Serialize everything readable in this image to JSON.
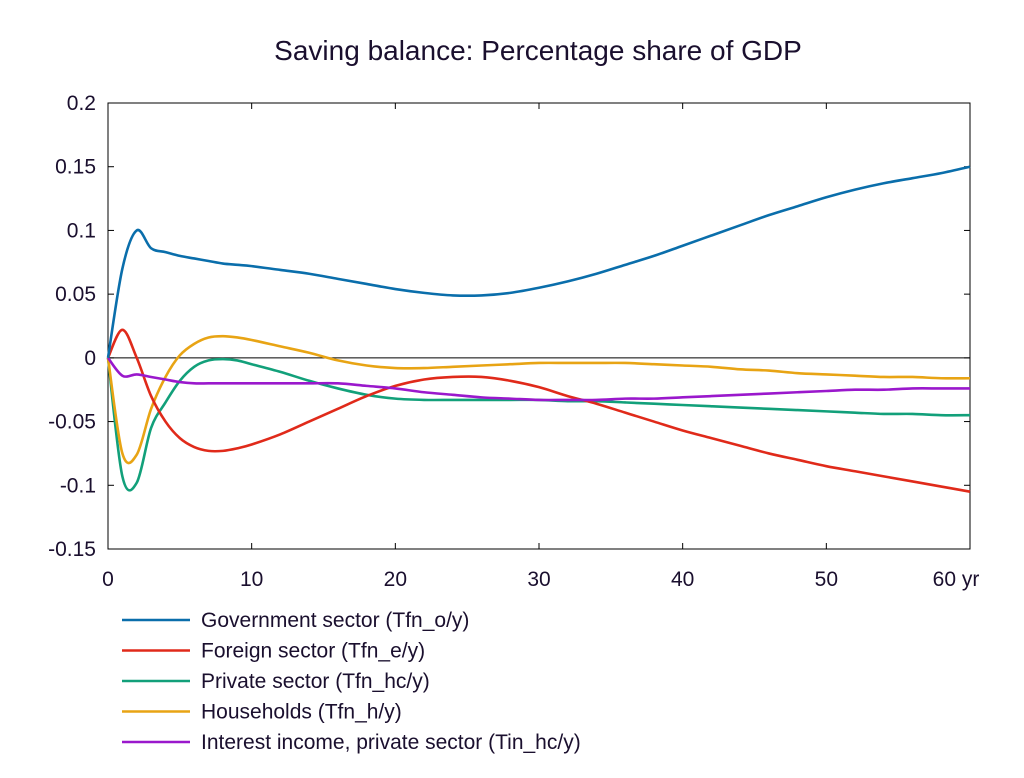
{
  "chart_data": {
    "type": "line",
    "title": "Saving balance: Percentage share of GDP",
    "xlabel": "",
    "ylabel": "",
    "xlim": [
      0,
      60
    ],
    "ylim": [
      -0.15,
      0.2
    ],
    "x_ticks": [
      "0",
      "10",
      "20",
      "30",
      "40",
      "50",
      "60 yr"
    ],
    "x_tick_values": [
      0,
      10,
      20,
      30,
      40,
      50,
      60
    ],
    "y_ticks": [
      "0.2",
      "0.15",
      "0.1",
      "0.05",
      "0",
      "-0.05",
      "-0.1",
      "-0.15"
    ],
    "y_tick_values": [
      0.2,
      0.15,
      0.1,
      0.05,
      0,
      -0.05,
      -0.1,
      -0.15
    ],
    "zero_line": true,
    "grid": false,
    "legend_position": "bottom",
    "x": [
      0,
      1,
      2,
      3,
      4,
      5,
      6,
      7,
      8,
      9,
      10,
      12,
      14,
      16,
      18,
      20,
      22,
      24,
      26,
      28,
      30,
      32,
      34,
      36,
      38,
      40,
      42,
      44,
      46,
      48,
      50,
      52,
      54,
      56,
      58,
      60
    ],
    "series": [
      {
        "name": "Government sector (Tfn_o/y)",
        "color": "#0a6eab",
        "values": [
          0,
          0.07,
          0.1,
          0.086,
          0.083,
          0.08,
          0.078,
          0.076,
          0.074,
          0.073,
          0.072,
          0.069,
          0.066,
          0.062,
          0.058,
          0.054,
          0.051,
          0.049,
          0.049,
          0.051,
          0.055,
          0.06,
          0.066,
          0.073,
          0.08,
          0.088,
          0.096,
          0.104,
          0.112,
          0.119,
          0.126,
          0.132,
          0.137,
          0.141,
          0.145,
          0.15
        ]
      },
      {
        "name": "Foreign sector (Tfn_e/y)",
        "color": "#e02a1a",
        "values": [
          0,
          0.022,
          0.0,
          -0.03,
          -0.05,
          -0.063,
          -0.07,
          -0.073,
          -0.073,
          -0.071,
          -0.068,
          -0.06,
          -0.05,
          -0.04,
          -0.03,
          -0.022,
          -0.017,
          -0.015,
          -0.015,
          -0.018,
          -0.023,
          -0.03,
          -0.036,
          -0.043,
          -0.05,
          -0.057,
          -0.063,
          -0.069,
          -0.075,
          -0.08,
          -0.085,
          -0.089,
          -0.093,
          -0.097,
          -0.101,
          -0.105
        ]
      },
      {
        "name": "Private sector (Tfn_hc/y)",
        "color": "#12a07a",
        "values": [
          0,
          -0.093,
          -0.098,
          -0.055,
          -0.035,
          -0.018,
          -0.007,
          -0.002,
          -0.001,
          -0.002,
          -0.005,
          -0.011,
          -0.018,
          -0.024,
          -0.029,
          -0.032,
          -0.033,
          -0.033,
          -0.033,
          -0.033,
          -0.033,
          -0.034,
          -0.034,
          -0.035,
          -0.036,
          -0.037,
          -0.038,
          -0.039,
          -0.04,
          -0.041,
          -0.042,
          -0.043,
          -0.044,
          -0.044,
          -0.045,
          -0.045
        ]
      },
      {
        "name": "Households (Tfn_h/y)",
        "color": "#e8a414",
        "values": [
          0,
          -0.075,
          -0.076,
          -0.04,
          -0.015,
          0.002,
          0.011,
          0.016,
          0.017,
          0.016,
          0.014,
          0.009,
          0.004,
          -0.002,
          -0.006,
          -0.008,
          -0.008,
          -0.007,
          -0.006,
          -0.005,
          -0.004,
          -0.004,
          -0.004,
          -0.004,
          -0.005,
          -0.006,
          -0.007,
          -0.009,
          -0.01,
          -0.012,
          -0.013,
          -0.014,
          -0.015,
          -0.015,
          -0.016,
          -0.016
        ]
      },
      {
        "name": "Interest income, private sector (Tin_hc/y)",
        "color": "#9a18cc",
        "values": [
          0,
          -0.014,
          -0.013,
          -0.015,
          -0.017,
          -0.019,
          -0.02,
          -0.02,
          -0.02,
          -0.02,
          -0.02,
          -0.02,
          -0.02,
          -0.02,
          -0.022,
          -0.024,
          -0.027,
          -0.029,
          -0.031,
          -0.032,
          -0.033,
          -0.033,
          -0.033,
          -0.032,
          -0.032,
          -0.031,
          -0.03,
          -0.029,
          -0.028,
          -0.027,
          -0.026,
          -0.025,
          -0.025,
          -0.024,
          -0.024,
          -0.024
        ]
      }
    ]
  }
}
